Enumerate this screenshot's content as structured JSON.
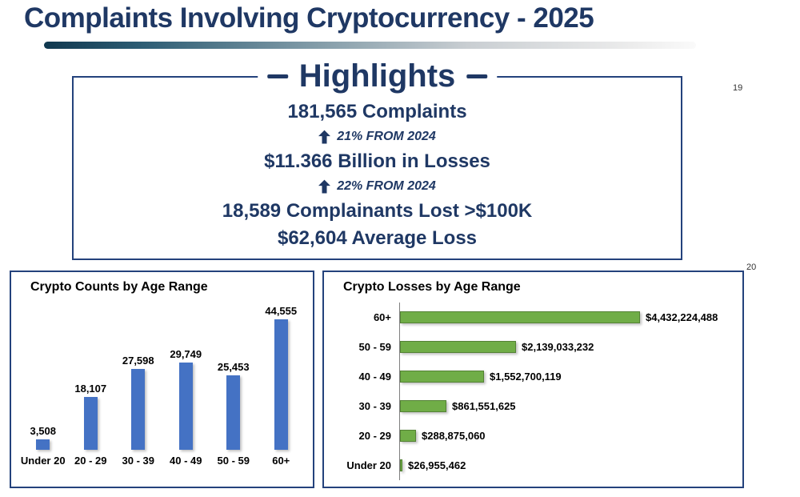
{
  "page": {
    "title": "Complaints Involving Cryptocurrency - 2025",
    "slide_numbers": [
      "19",
      "20"
    ]
  },
  "colors": {
    "title_navy": "#1F3864",
    "border_navy": "#24427C",
    "bar_blue": "#4472C4",
    "bar_green": "#70AD47"
  },
  "highlights": {
    "heading": "Highlights",
    "lines": [
      {
        "type": "stat",
        "text": "181,565 Complaints"
      },
      {
        "type": "delta",
        "icon": "up-arrow",
        "text": "21% FROM 2024"
      },
      {
        "type": "stat",
        "text": "$11.366 Billion in Losses"
      },
      {
        "type": "delta",
        "icon": "up-arrow",
        "text": "22% FROM 2024"
      },
      {
        "type": "stat",
        "text": "18,589 Complainants Lost >$100K"
      },
      {
        "type": "stat",
        "text": "$62,604 Average Loss"
      }
    ]
  },
  "chart_data": [
    {
      "type": "bar",
      "orientation": "vertical",
      "title": "Crypto Counts by Age Range",
      "categories": [
        "Under 20",
        "20 - 29",
        "30 - 39",
        "40 - 49",
        "50 - 59",
        "60+"
      ],
      "values": [
        3508,
        18107,
        27598,
        29749,
        25453,
        44555
      ],
      "value_labels": [
        "3,508",
        "18,107",
        "27,598",
        "29,749",
        "25,453",
        "44,555"
      ],
      "bar_color": "#4472C4",
      "xlabel": "",
      "ylabel": "",
      "ylim": [
        0,
        48000
      ],
      "grid": false,
      "legend": "none"
    },
    {
      "type": "bar",
      "orientation": "horizontal",
      "title": "Crypto Losses by Age Range",
      "categories": [
        "60+",
        "50 - 59",
        "40 - 49",
        "30 - 39",
        "20 - 29",
        "Under 20"
      ],
      "values": [
        4432224488,
        2139033232,
        1552700119,
        861551625,
        288875060,
        26955462
      ],
      "value_labels": [
        "$4,432,224,488",
        "$2,139,033,232",
        "$1,552,700,119",
        "$861,551,625",
        "$288,875,060",
        "$26,955,462"
      ],
      "bar_color": "#70AD47",
      "xlabel": "",
      "ylabel": "",
      "xlim": [
        0,
        4600000000
      ],
      "grid": false,
      "legend": "none"
    }
  ]
}
